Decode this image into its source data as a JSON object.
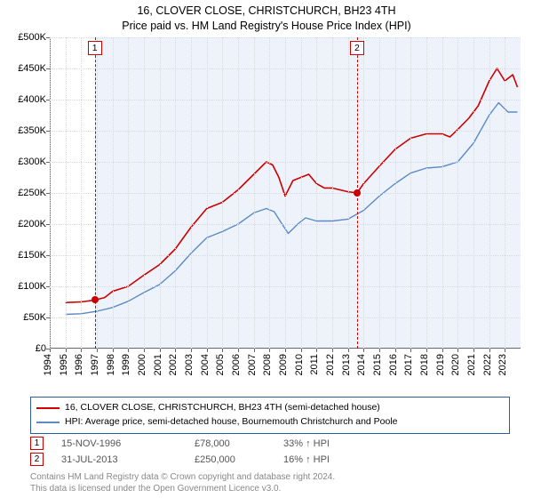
{
  "title_line1": "16, CLOVER CLOSE, CHRISTCHURCH, BH23 4TH",
  "title_line2": "Price paid vs. HM Land Registry's House Price Index (HPI)",
  "chart": {
    "type": "line",
    "background_color": "#ffffff",
    "shaded_region_color": "#eef3fb",
    "grid_color": "#d9d9d9",
    "axis_color": "#666666",
    "font_size_ticks": 11,
    "yaxis": {
      "min": 0,
      "max": 500000,
      "step": 50000,
      "format": "gbp_k"
    },
    "xaxis": {
      "min": 1994,
      "max": 2024,
      "step": 1
    },
    "shaded_from_year": 1996.87,
    "series": [
      {
        "id": "price_paid",
        "label": "16, CLOVER CLOSE, CHRISTCHURCH, BH23 4TH (semi-detached house)",
        "color": "#cc0000",
        "line_width": 1.6,
        "points": [
          [
            1995,
            74000
          ],
          [
            1996,
            75000
          ],
          [
            1996.87,
            78000
          ],
          [
            1997.5,
            82000
          ],
          [
            1998,
            92000
          ],
          [
            1999,
            100000
          ],
          [
            2000,
            118000
          ],
          [
            2001,
            135000
          ],
          [
            2002,
            160000
          ],
          [
            2003,
            195000
          ],
          [
            2004,
            225000
          ],
          [
            2005,
            235000
          ],
          [
            2006,
            255000
          ],
          [
            2007,
            280000
          ],
          [
            2007.8,
            300000
          ],
          [
            2008.2,
            295000
          ],
          [
            2008.6,
            275000
          ],
          [
            2009,
            245000
          ],
          [
            2009.5,
            270000
          ],
          [
            2010,
            275000
          ],
          [
            2010.5,
            280000
          ],
          [
            2011,
            265000
          ],
          [
            2011.5,
            258000
          ],
          [
            2012,
            258000
          ],
          [
            2012.5,
            255000
          ],
          [
            2013,
            252000
          ],
          [
            2013.58,
            250000
          ],
          [
            2014,
            265000
          ],
          [
            2015,
            293000
          ],
          [
            2016,
            320000
          ],
          [
            2017,
            338000
          ],
          [
            2018,
            345000
          ],
          [
            2019,
            345000
          ],
          [
            2019.5,
            340000
          ],
          [
            2020,
            352000
          ],
          [
            2020.7,
            370000
          ],
          [
            2021.3,
            390000
          ],
          [
            2022,
            430000
          ],
          [
            2022.5,
            450000
          ],
          [
            2023,
            430000
          ],
          [
            2023.5,
            440000
          ],
          [
            2023.8,
            420000
          ]
        ]
      },
      {
        "id": "hpi",
        "label": "HPI: Average price, semi-detached house, Bournemouth Christchurch and Poole",
        "color": "#5b8ac6",
        "line_width": 1.4,
        "points": [
          [
            1995,
            55000
          ],
          [
            1996,
            56000
          ],
          [
            1997,
            60000
          ],
          [
            1998,
            66000
          ],
          [
            1999,
            76000
          ],
          [
            2000,
            90000
          ],
          [
            2001,
            103000
          ],
          [
            2002,
            125000
          ],
          [
            2003,
            153000
          ],
          [
            2004,
            178000
          ],
          [
            2005,
            188000
          ],
          [
            2006,
            200000
          ],
          [
            2007,
            218000
          ],
          [
            2007.8,
            225000
          ],
          [
            2008.3,
            220000
          ],
          [
            2008.8,
            200000
          ],
          [
            2009.2,
            185000
          ],
          [
            2009.8,
            200000
          ],
          [
            2010.3,
            210000
          ],
          [
            2011,
            205000
          ],
          [
            2012,
            205000
          ],
          [
            2013,
            208000
          ],
          [
            2014,
            222000
          ],
          [
            2015,
            245000
          ],
          [
            2016,
            265000
          ],
          [
            2017,
            282000
          ],
          [
            2018,
            290000
          ],
          [
            2019,
            292000
          ],
          [
            2020,
            300000
          ],
          [
            2021,
            330000
          ],
          [
            2022,
            375000
          ],
          [
            2022.6,
            395000
          ],
          [
            2023.2,
            380000
          ],
          [
            2023.8,
            380000
          ]
        ]
      }
    ],
    "sale_markers": [
      {
        "n": "1",
        "year": 1996.87,
        "price": 78000
      },
      {
        "n": "2",
        "year": 2013.58,
        "price": 250000
      }
    ],
    "marker_line_color": "#cc0000",
    "marker_badge_border": "#cc0000",
    "marker_dot_fill": "#cc0000"
  },
  "legend": {
    "border_color": "#2d5a9a",
    "items": [
      {
        "color": "#cc0000",
        "text": "16, CLOVER CLOSE, CHRISTCHURCH, BH23 4TH (semi-detached house)"
      },
      {
        "color": "#5b8ac6",
        "text": "HPI: Average price, semi-detached house, Bournemouth Christchurch and Poole"
      }
    ]
  },
  "sales": [
    {
      "n": "1",
      "date": "15-NOV-1996",
      "price": "£78,000",
      "relation": "33% ↑ HPI"
    },
    {
      "n": "2",
      "date": "31-JUL-2013",
      "price": "£250,000",
      "relation": "16% ↑ HPI"
    }
  ],
  "sale_badge_border": "#cc0000",
  "footer_line1": "Contains HM Land Registry data © Crown copyright and database right 2024.",
  "footer_line2": "This data is licensed under the Open Government Licence v3.0."
}
